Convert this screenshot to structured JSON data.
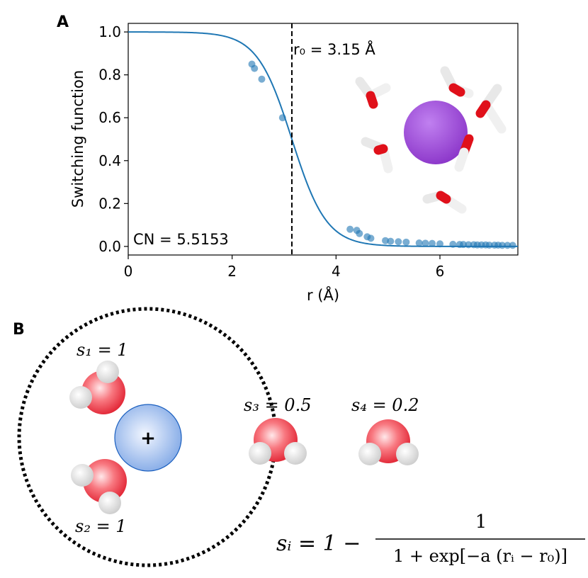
{
  "panel_a": {
    "letter": "A"
  },
  "panel_b": {
    "letter": "B"
  },
  "chart_data": {
    "type": "line",
    "title": "",
    "xlabel": "r (Å)",
    "ylabel": "Switching function",
    "xlim": [
      0,
      7.5
    ],
    "ylim": [
      -0.04,
      1.04
    ],
    "x_ticks": [
      0,
      2,
      4,
      6
    ],
    "x_tick_labels": [
      "0",
      "2",
      "4",
      "6"
    ],
    "y_ticks": [
      0.0,
      0.2,
      0.4,
      0.6,
      0.8,
      1.0
    ],
    "y_tick_labels": [
      "0.0",
      "0.2",
      "0.4",
      "0.6",
      "0.8",
      "1.0"
    ],
    "grid": false,
    "r0": 3.15,
    "a": 3.0,
    "r0_annotation": "r₀ = 3.15 Å",
    "cn_annotation": "CN = 5.5153",
    "line_color": "#1f77b4",
    "series": [
      {
        "points": [
          [
            2.38,
            0.85
          ],
          [
            2.43,
            0.83
          ],
          [
            2.57,
            0.78
          ],
          [
            2.97,
            0.6
          ],
          [
            4.27,
            0.08
          ],
          [
            4.4,
            0.075
          ],
          [
            4.45,
            0.06
          ],
          [
            4.6,
            0.045
          ],
          [
            4.67,
            0.038
          ],
          [
            4.95,
            0.027
          ],
          [
            5.05,
            0.024
          ],
          [
            5.2,
            0.022
          ],
          [
            5.35,
            0.02
          ],
          [
            5.6,
            0.016
          ],
          [
            5.72,
            0.015
          ],
          [
            5.85,
            0.014
          ],
          [
            6.0,
            0.012
          ],
          [
            6.25,
            0.01
          ],
          [
            6.38,
            0.009
          ],
          [
            6.45,
            0.009
          ],
          [
            6.55,
            0.008
          ],
          [
            6.65,
            0.008
          ],
          [
            6.72,
            0.007
          ],
          [
            6.8,
            0.007
          ],
          [
            6.88,
            0.007
          ],
          [
            6.95,
            0.006
          ],
          [
            7.05,
            0.006
          ],
          [
            7.12,
            0.006
          ],
          [
            7.2,
            0.005
          ],
          [
            7.3,
            0.005
          ],
          [
            7.4,
            0.005
          ]
        ]
      }
    ]
  },
  "diagram": {
    "labels": {
      "s1": "s₁ = 1",
      "s2": "s₂ = 1",
      "s3": "s₃ = 0.5",
      "s4": "s₄ = 0.2"
    },
    "ion_symbol": "+",
    "equation_lhs": "sᵢ = 1 −",
    "equation_numerator": "1",
    "equation_denominator": "1 + exp[−a (rᵢ − r₀)]",
    "colors": {
      "oxygen": "#e8283a",
      "hydrogen": "#ececec",
      "ion": "#7da7e0",
      "ion_edge": "#1a5fbf",
      "sodium_image": "#9b46d9"
    }
  }
}
